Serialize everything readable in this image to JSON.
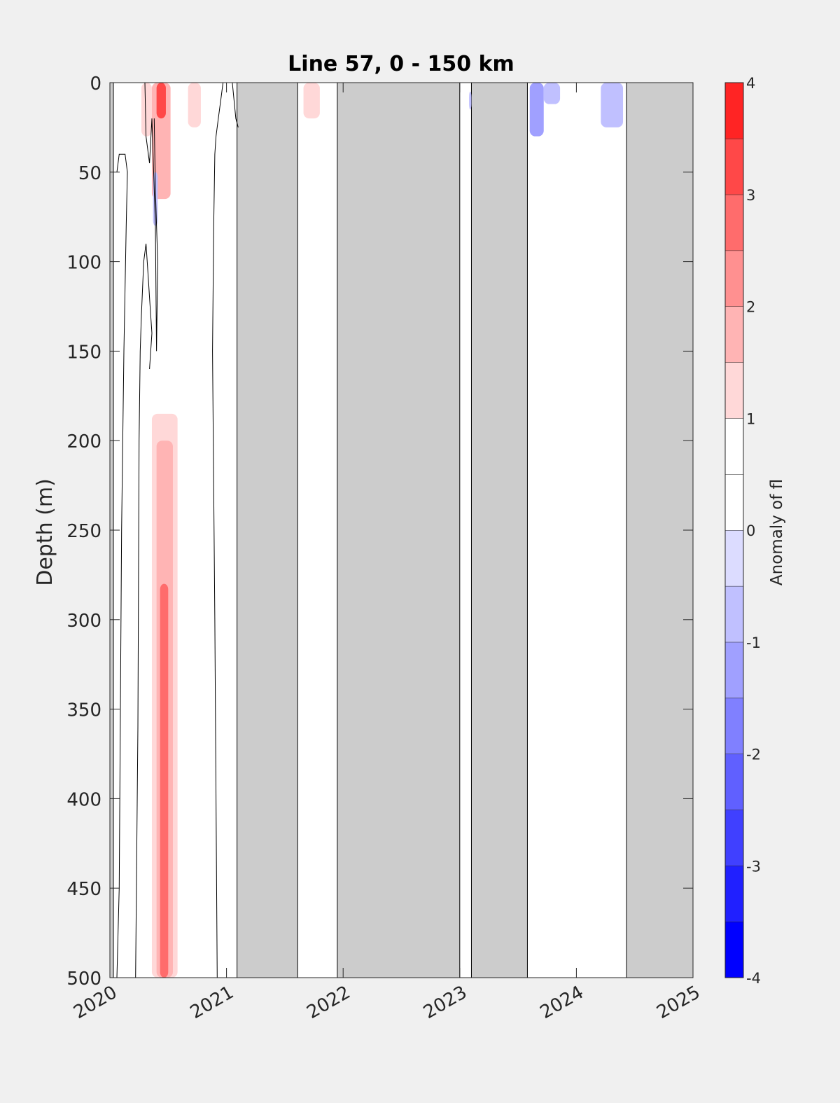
{
  "chart_data": {
    "type": "heatmap",
    "title": "Line 57, 0 - 150 km",
    "xlabel": "",
    "ylabel": "Depth (m)",
    "colorbar_label": "Anomaly of fl",
    "xlim": [
      2020,
      2025
    ],
    "ylim": [
      0,
      500
    ],
    "y_reversed": true,
    "x_ticks": [
      "2020",
      "2021",
      "2022",
      "2023",
      "2024",
      "2025"
    ],
    "y_ticks": [
      "0",
      "50",
      "100",
      "150",
      "200",
      "250",
      "300",
      "350",
      "400",
      "450",
      "500"
    ],
    "colorbar_ticks": [
      "-4",
      "-3",
      "-2",
      "-1",
      "0",
      "1",
      "2",
      "3",
      "4"
    ],
    "colorbar_range": [
      -4,
      4
    ],
    "colorbar_levels": [
      -4,
      -3.5,
      -3,
      -2.5,
      -2,
      -1.5,
      -1,
      -0.5,
      0,
      0.5,
      1,
      1.5,
      2,
      2.5,
      3,
      3.5,
      4
    ],
    "colorbar_colors": [
      "#0000ff",
      "#2020ff",
      "#4040ff",
      "#6060ff",
      "#8080ff",
      "#a0a0ff",
      "#c0c0ff",
      "#dcdcff",
      "#ffffff",
      "#ffffff",
      "#ffd8d8",
      "#ffb4b4",
      "#ff9090",
      "#ff6c6c",
      "#ff4848",
      "#ff2424",
      "#ff0000"
    ],
    "no_data_color": "#cccccc",
    "no_data_periods": [
      [
        2019.99,
        2020.03
      ],
      [
        2021.09,
        2021.61
      ],
      [
        2021.95,
        2023.0
      ],
      [
        2023.1,
        2023.58
      ],
      [
        2024.43,
        2025.0
      ]
    ],
    "anomaly_regions": [
      {
        "x": [
          2020.27,
          2020.36
        ],
        "depth": [
          0,
          30
        ],
        "value": 1.0
      },
      {
        "x": [
          2020.36,
          2020.52
        ],
        "depth": [
          0,
          65
        ],
        "value": 1.5
      },
      {
        "x": [
          2020.4,
          2020.48
        ],
        "depth": [
          0,
          20
        ],
        "value": 3.0
      },
      {
        "x": [
          2020.37,
          2020.41
        ],
        "depth": [
          50,
          80
        ],
        "value": -0.8
      },
      {
        "x": [
          2020.67,
          2020.78
        ],
        "depth": [
          0,
          25
        ],
        "value": 1.0
      },
      {
        "x": [
          2020.4,
          2020.52
        ],
        "depth": [
          85,
          185
        ],
        "value": 0.8
      },
      {
        "x": [
          2020.36,
          2020.58
        ],
        "depth": [
          185,
          500
        ],
        "value": 1.0
      },
      {
        "x": [
          2020.4,
          2020.54
        ],
        "depth": [
          200,
          500
        ],
        "value": 1.5
      },
      {
        "x": [
          2020.43,
          2020.5
        ],
        "depth": [
          280,
          500
        ],
        "value": 2.5
      },
      {
        "x": [
          2020.71,
          2020.82
        ],
        "depth": [
          195,
          500
        ],
        "value": 0.8
      },
      {
        "x": [
          2021.66,
          2021.8
        ],
        "depth": [
          0,
          20
        ],
        "value": 1.0
      },
      {
        "x": [
          2023.08,
          2023.1
        ],
        "depth": [
          5,
          15
        ],
        "value": -0.7
      },
      {
        "x": [
          2023.6,
          2023.72
        ],
        "depth": [
          0,
          30
        ],
        "value": -1.2
      },
      {
        "x": [
          2023.72,
          2023.86
        ],
        "depth": [
          0,
          12
        ],
        "value": -0.8
      },
      {
        "x": [
          2024.21,
          2024.4
        ],
        "depth": [
          0,
          25
        ],
        "value": -0.8
      }
    ],
    "zero_contours": [
      {
        "x": [
          2020.06,
          2020.08,
          2020.13,
          2020.15,
          2020.14,
          2020.12,
          2020.1,
          2020.09,
          2020.08,
          2020.06
        ],
        "depth": [
          50,
          40,
          40,
          50,
          80,
          150,
          250,
          350,
          450,
          500
        ]
      },
      {
        "x": [
          2020.22,
          2020.24,
          2020.25,
          2020.26,
          2020.27,
          2020.29,
          2020.31,
          2020.33,
          2020.34,
          2020.36,
          2020.34
        ],
        "depth": [
          500,
          360,
          200,
          150,
          130,
          100,
          90,
          110,
          120,
          140,
          160
        ]
      },
      {
        "x": [
          2020.3,
          2020.31,
          2020.34,
          2020.36,
          2020.39,
          2020.4,
          2020.41,
          2020.39,
          2020.38
        ],
        "depth": [
          0,
          30,
          45,
          20,
          80,
          150,
          100,
          60,
          20
        ]
      },
      {
        "x": [
          2020.92,
          2020.9,
          2020.88,
          2020.89,
          2020.9,
          2020.91,
          2020.93,
          2020.95,
          2020.97
        ],
        "depth": [
          500,
          300,
          150,
          80,
          40,
          30,
          20,
          10,
          0
        ]
      },
      {
        "x": [
          2021.05,
          2021.08,
          2021.1
        ],
        "depth": [
          0,
          20,
          25
        ]
      }
    ]
  }
}
